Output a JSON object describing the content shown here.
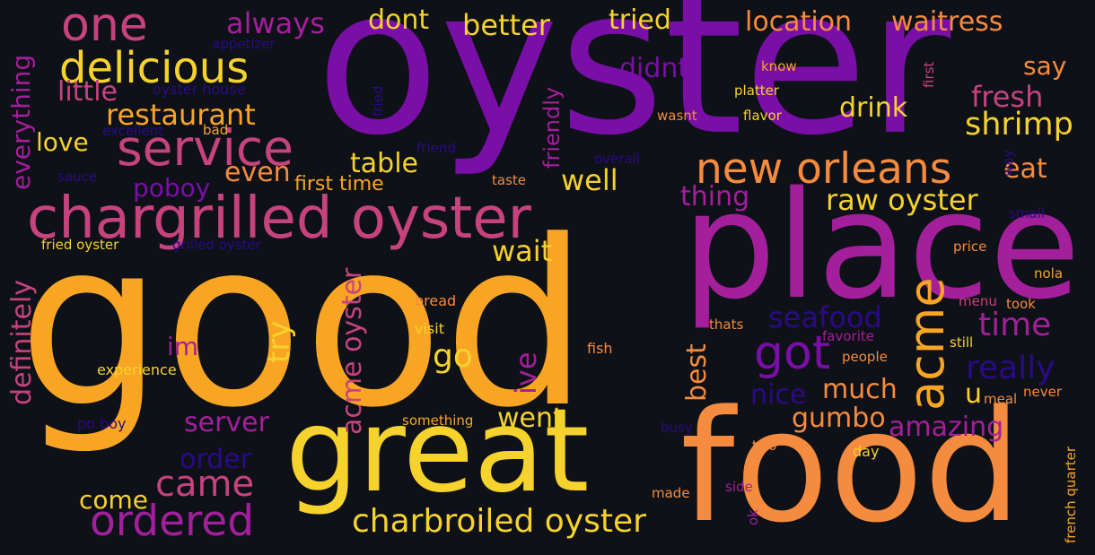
{
  "cloud": {
    "background": "#0e1117",
    "palette": {
      "purple": "#7a0fa8",
      "magenta": "#a31f9c",
      "pink": "#c6437e",
      "orange": "#f58b3e",
      "gold": "#f9a524",
      "yellow": "#f6d22c",
      "navy": "#2b0a87"
    },
    "words": [
      "oyster",
      "good",
      "place",
      "food",
      "great",
      "chargrilled oyster",
      "service",
      "new orleans",
      "one",
      "delicious",
      "ordered",
      "charbroiled oyster",
      "acme",
      "got",
      "restaurant",
      "acme oyster",
      "raw oyster",
      "came",
      "shrimp",
      "fresh",
      "always",
      "dont",
      "better",
      "tried",
      "location",
      "waitress",
      "say",
      "didnt",
      "drink",
      "little",
      "love",
      "table",
      "everything",
      "even",
      "poboy",
      "first time",
      "well",
      "eat",
      "thing",
      "wait",
      "definitely",
      "try",
      "im",
      "go",
      "ive",
      "best",
      "seafood",
      "time",
      "really",
      "nice",
      "much",
      "gumbo",
      "amazing",
      "u",
      "server",
      "order",
      "went",
      "come",
      "friendly",
      "appetizer",
      "oyster house",
      "excellent",
      "bad",
      "sauce",
      "friend",
      "overall",
      "taste",
      "know",
      "platter",
      "wasnt",
      "flavor",
      "first",
      "way",
      "small",
      "fried",
      "fried oyster",
      "grilled oyster",
      "price",
      "nola",
      "menu",
      "took",
      "bread",
      "visit",
      "thats",
      "favorite",
      "still",
      "people",
      "fish",
      "meal",
      "never",
      "experience",
      "po boy",
      "something",
      "busy",
      "two",
      "day",
      "made",
      "side",
      "ok",
      "french quarter"
    ]
  }
}
